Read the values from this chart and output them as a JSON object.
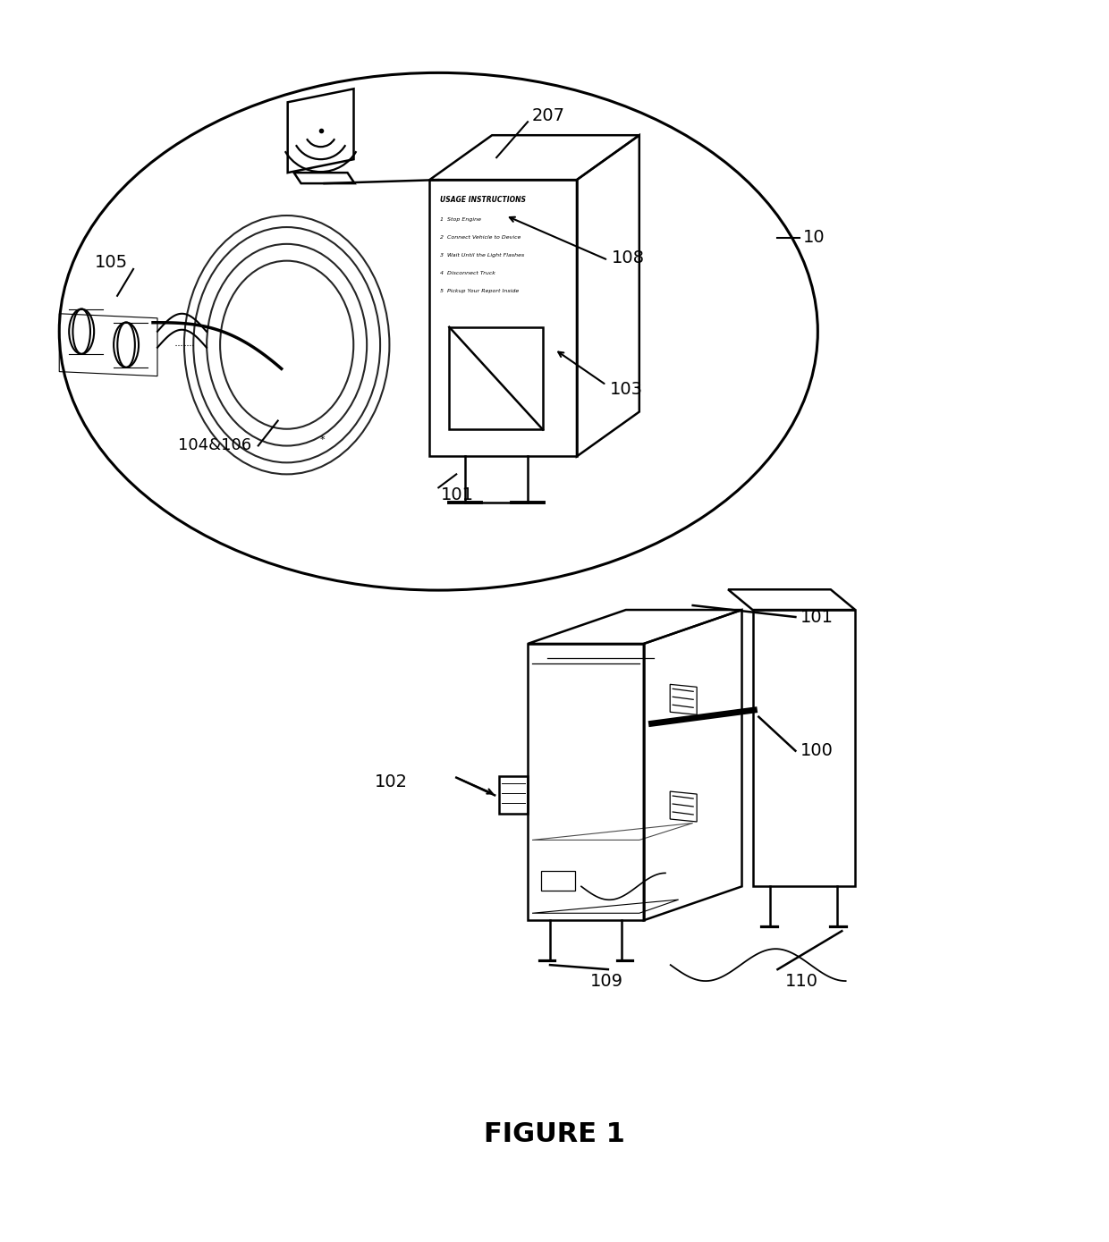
{
  "title": "FIGURE 1",
  "bg": "#ffffff",
  "lc": "#000000",
  "fig_w": 12.4,
  "fig_h": 13.89,
  "dpi": 100,
  "instructions": [
    "USAGE INSTRUCTIONS",
    "1  Stop Engine",
    "2  Connect Vehicle to Device",
    "3  Wait Until the Light Flashes",
    "4  Disconnect Truck",
    "5  Pickup Your Report Inside"
  ]
}
